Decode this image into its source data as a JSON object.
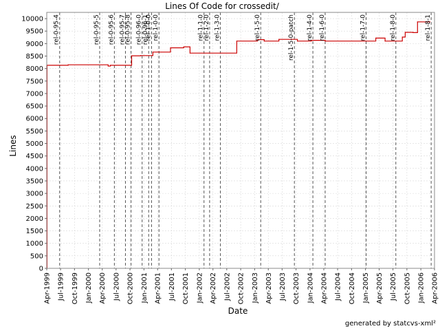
{
  "chart_data": {
    "type": "line",
    "title": "Lines Of Code for crossedit/",
    "xlabel": "Date",
    "ylabel": "Lines",
    "credit": "generated by statcvs-xml²",
    "x_domain": [
      "1999-04-01",
      "2006-04-01"
    ],
    "ylim": [
      0,
      10250
    ],
    "y_ticks": [
      0,
      500,
      1000,
      1500,
      2000,
      2500,
      3000,
      3500,
      4000,
      4500,
      5000,
      5500,
      6000,
      6500,
      7000,
      7500,
      8000,
      8500,
      9000,
      9500,
      10000
    ],
    "x_ticks": [
      {
        "date": "1999-04-01",
        "label": "Apr-1999"
      },
      {
        "date": "1999-07-01",
        "label": "Jul-1999"
      },
      {
        "date": "1999-10-01",
        "label": "Oct-1999"
      },
      {
        "date": "2000-01-01",
        "label": "Jan-2000"
      },
      {
        "date": "2000-04-01",
        "label": "Apr-2000"
      },
      {
        "date": "2000-07-01",
        "label": "Jul-2000"
      },
      {
        "date": "2000-10-01",
        "label": "Oct-2000"
      },
      {
        "date": "2001-01-01",
        "label": "Jan-2001"
      },
      {
        "date": "2001-04-01",
        "label": "Apr-2001"
      },
      {
        "date": "2001-07-01",
        "label": "Jul-2001"
      },
      {
        "date": "2001-10-01",
        "label": "Oct-2001"
      },
      {
        "date": "2002-01-01",
        "label": "Jan-2002"
      },
      {
        "date": "2002-04-01",
        "label": "Apr-2002"
      },
      {
        "date": "2002-07-01",
        "label": "Jul-2002"
      },
      {
        "date": "2002-10-01",
        "label": "Oct-2002"
      },
      {
        "date": "2003-01-01",
        "label": "Jan-2003"
      },
      {
        "date": "2003-04-01",
        "label": "Apr-2003"
      },
      {
        "date": "2003-07-01",
        "label": "Jul-2003"
      },
      {
        "date": "2003-10-01",
        "label": "Oct-2003"
      },
      {
        "date": "2004-01-01",
        "label": "Jan-2004"
      },
      {
        "date": "2004-04-01",
        "label": "Apr-2004"
      },
      {
        "date": "2004-07-01",
        "label": "Jul-2004"
      },
      {
        "date": "2004-10-01",
        "label": "Oct-2004"
      },
      {
        "date": "2005-01-01",
        "label": "Jan-2005"
      },
      {
        "date": "2005-04-01",
        "label": "Apr-2005"
      },
      {
        "date": "2005-07-01",
        "label": "Jul-2005"
      },
      {
        "date": "2005-10-01",
        "label": "Oct-2005"
      },
      {
        "date": "2006-01-01",
        "label": "Jan-2006"
      },
      {
        "date": "2006-04-01",
        "label": "Apr-2006"
      }
    ],
    "grid": true,
    "series": [
      {
        "color": "#cc0000",
        "step": true,
        "points": [
          [
            "1999-04-01",
            0
          ],
          [
            "1999-04-03",
            8130
          ],
          [
            "1999-08-20",
            8150
          ],
          [
            "2000-05-10",
            8100
          ],
          [
            "2000-05-25",
            8130
          ],
          [
            "2000-10-12",
            8510
          ],
          [
            "2000-12-10",
            8520
          ],
          [
            "2001-03-01",
            8660
          ],
          [
            "2001-06-25",
            8830
          ],
          [
            "2001-09-20",
            8870
          ],
          [
            "2001-11-01",
            8620
          ],
          [
            "2002-09-05",
            9100
          ],
          [
            "2003-01-20",
            9160
          ],
          [
            "2003-03-05",
            9100
          ],
          [
            "2003-06-10",
            9170
          ],
          [
            "2003-10-10",
            9100
          ],
          [
            "2004-01-10",
            9130
          ],
          [
            "2004-04-10",
            9100
          ],
          [
            "2005-03-10",
            9220
          ],
          [
            "2005-05-10",
            9100
          ],
          [
            "2005-09-01",
            9260
          ],
          [
            "2005-09-20",
            9450
          ],
          [
            "2005-11-10",
            9440
          ],
          [
            "2005-12-10",
            9870
          ],
          [
            "2006-03-01",
            9880
          ]
        ]
      }
    ],
    "markers": [
      {
        "date": "1999-06-25",
        "label": "rel-0-95-4"
      },
      {
        "date": "2000-03-15",
        "label": "rel-0-95-5"
      },
      {
        "date": "2000-06-20",
        "label": "rel-0-95-6"
      },
      {
        "date": "2000-09-01",
        "label": "rel-0-95-7"
      },
      {
        "date": "2000-10-08",
        "label": "rel-0-95-8"
      },
      {
        "date": "2000-12-20",
        "label": "rel-0-96-0"
      },
      {
        "date": "2001-02-01",
        "label": "rel-0-96-1"
      },
      {
        "date": "2001-02-20",
        "label": "rel-1-0-0"
      },
      {
        "date": "2001-04-10",
        "label": "rel-1-0-0"
      },
      {
        "date": "2002-02-01",
        "label": "rel-1-1-0"
      },
      {
        "date": "2002-03-10",
        "label": "rel-1-2-0"
      },
      {
        "date": "2002-05-20",
        "label": "rel-1-3-0"
      },
      {
        "date": "2003-02-10",
        "label": "rel-1-5-0"
      },
      {
        "date": "2003-09-20",
        "label": "rel-1-5-0-patch"
      },
      {
        "date": "2004-01-20",
        "label": "rel-1-4-0"
      },
      {
        "date": "2004-04-10",
        "label": "rel-1-6-0"
      },
      {
        "date": "2005-01-05",
        "label": "rel-1-7-0"
      },
      {
        "date": "2005-07-20",
        "label": "rel-1-8-0"
      },
      {
        "date": "2006-03-10",
        "label": "rel-1-8-1"
      }
    ]
  }
}
